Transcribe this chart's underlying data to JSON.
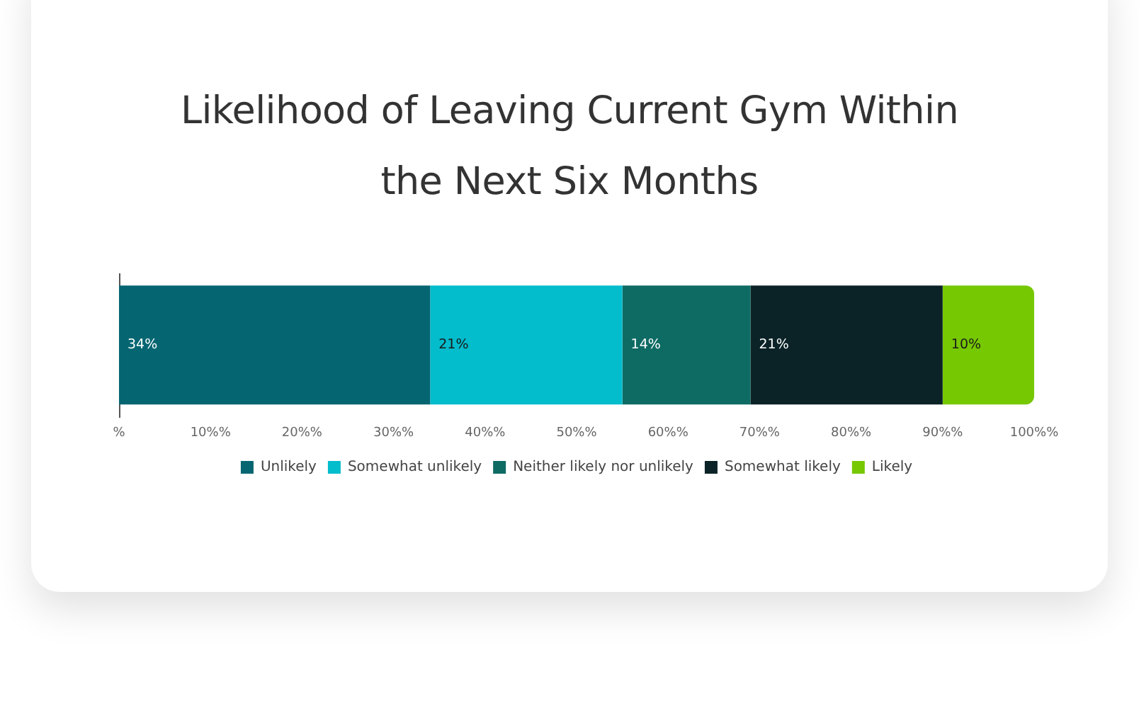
{
  "chart_data": {
    "type": "bar",
    "title": "Likelihood of Leaving Current Gym Within the Next Six Months",
    "orientation": "horizontal",
    "stacked": true,
    "categories": [
      null
    ],
    "series": [
      {
        "name": "Unlikely",
        "color": "#056672",
        "values": [
          34
        ],
        "value_labels": [
          "34%"
        ]
      },
      {
        "name": "Somewhat unlikely",
        "color": "#03bccc",
        "values": [
          21
        ],
        "value_labels": [
          "21%"
        ]
      },
      {
        "name": "Neither likely nor unlikely",
        "color": "#0e6b64",
        "values": [
          14
        ],
        "value_labels": [
          "14%"
        ]
      },
      {
        "name": "Somewhat likely",
        "color": "#0b2326",
        "values": [
          21
        ],
        "value_labels": [
          "21%"
        ]
      },
      {
        "name": "Likely",
        "color": "#76c803",
        "values": [
          10
        ],
        "value_labels": [
          "10%"
        ]
      }
    ],
    "xlim": [
      0,
      100
    ],
    "xticks": [
      {
        "value": 0,
        "label": "%"
      },
      {
        "value": 10,
        "label": "10%%"
      },
      {
        "value": 20,
        "label": "20%%"
      },
      {
        "value": 30,
        "label": "30%%"
      },
      {
        "value": 40,
        "label": "40%%"
      },
      {
        "value": 50,
        "label": "50%%"
      },
      {
        "value": 60,
        "label": "60%%"
      },
      {
        "value": 70,
        "label": "70%%"
      },
      {
        "value": 80,
        "label": "80%%"
      },
      {
        "value": 90,
        "label": "90%%"
      },
      {
        "value": 100,
        "label": "100%%"
      }
    ],
    "grid": false,
    "legend": "bottom"
  }
}
